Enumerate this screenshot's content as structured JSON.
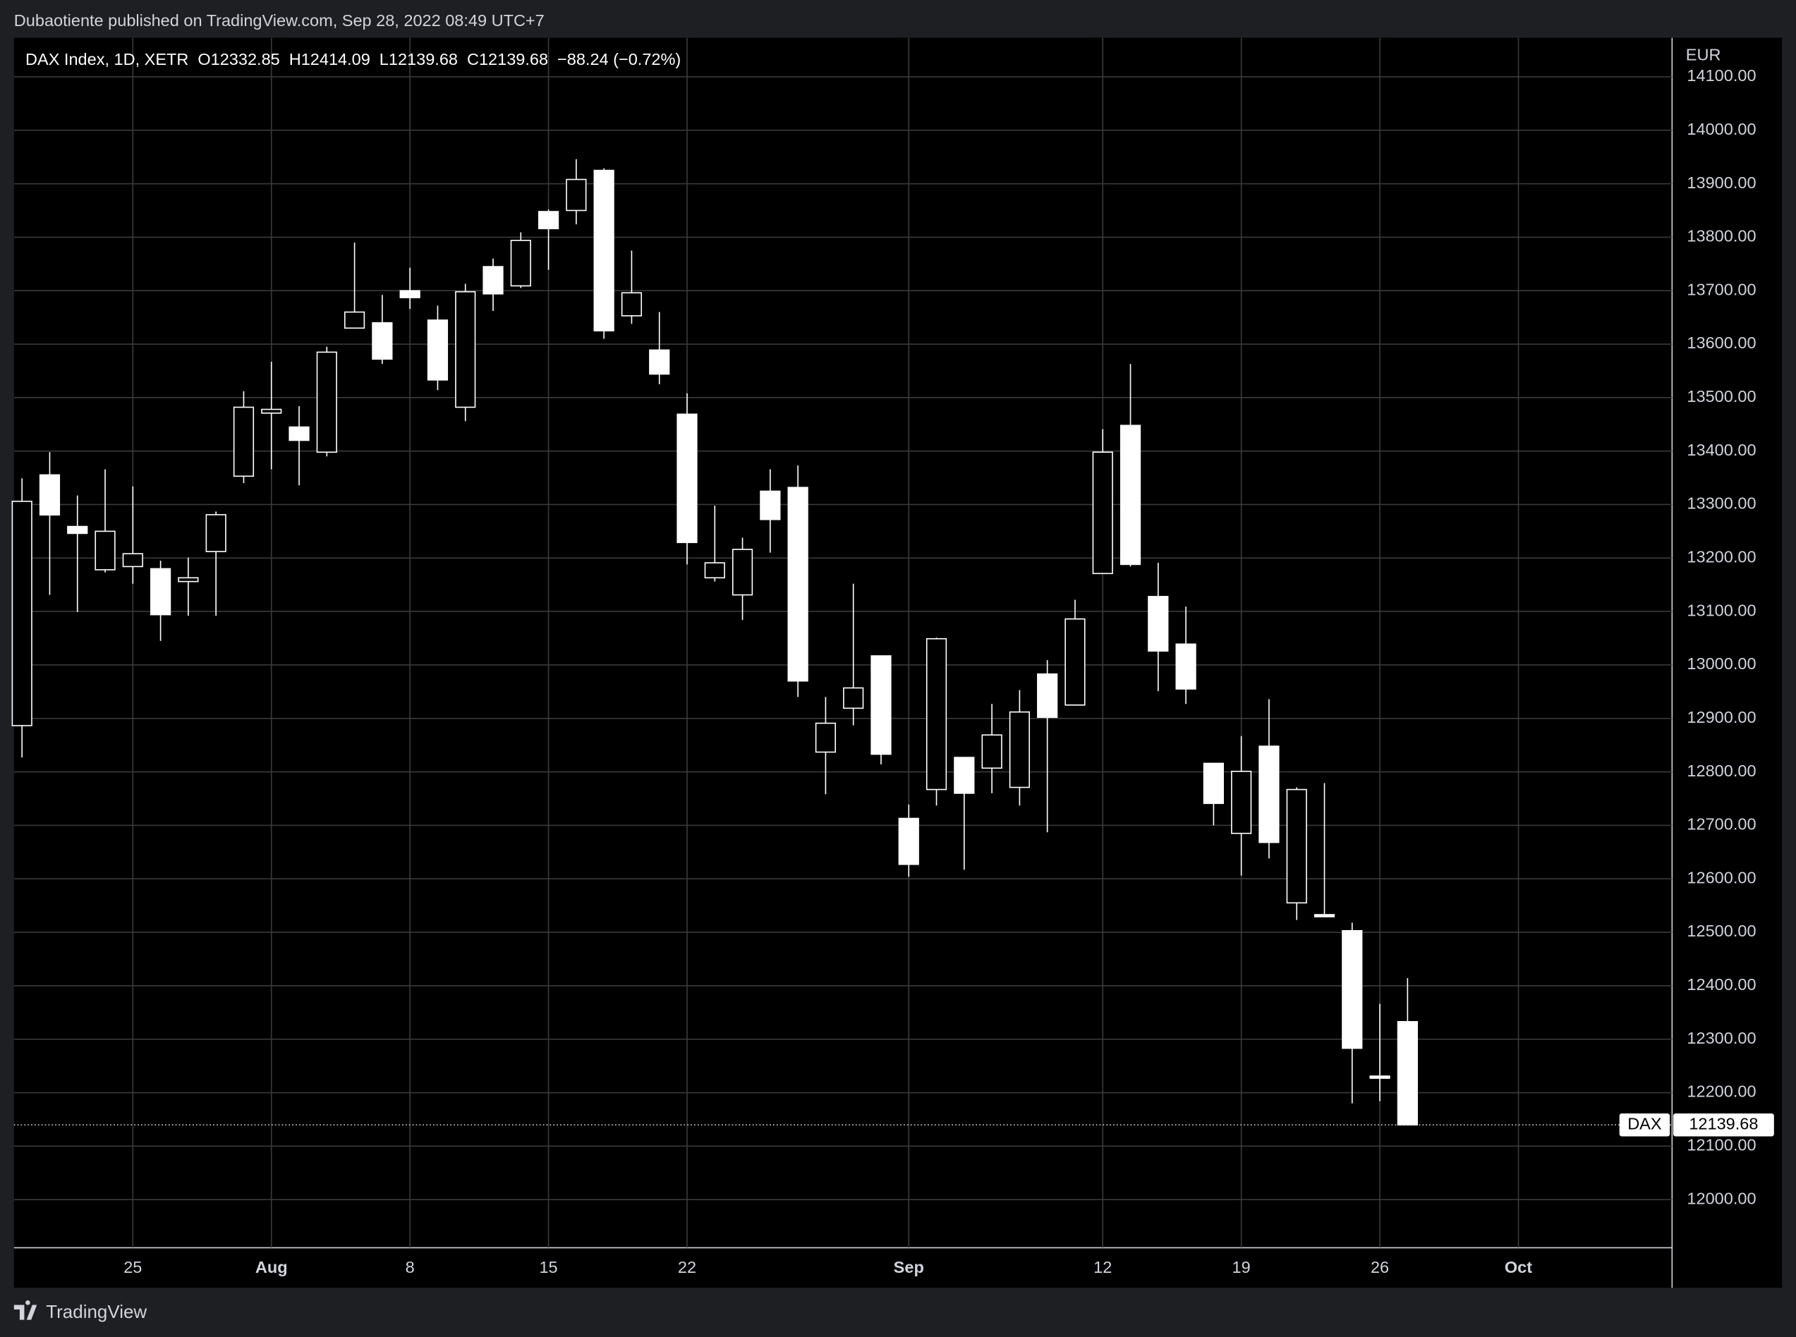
{
  "header": {
    "published": "Dubaotiente published on TradingView.com, Sep 28, 2022 08:49 UTC+7"
  },
  "footer": {
    "brand": "TradingView"
  },
  "chart_data": {
    "type": "candlestick",
    "legend": {
      "symbol": "DAX Index, 1D, XETR",
      "ohlc": [
        {
          "label": "O",
          "value": 12332.85
        },
        {
          "label": "H",
          "value": 12414.09
        },
        {
          "label": "L",
          "value": 12139.68
        },
        {
          "label": "C",
          "value": 12139.68
        }
      ],
      "change": "−88.24 (−0.72%)"
    },
    "currency": "EUR",
    "last_price": {
      "name": "DAX",
      "value": 12139.68
    },
    "categories": [
      null,
      null,
      null,
      null,
      "25",
      null,
      null,
      null,
      null,
      "Aug",
      null,
      null,
      null,
      null,
      "8",
      null,
      null,
      null,
      null,
      "15",
      null,
      null,
      null,
      null,
      "22",
      null,
      null,
      null,
      null,
      null,
      null,
      null,
      "Sep",
      null,
      null,
      null,
      null,
      null,
      null,
      "12",
      null,
      null,
      null,
      null,
      "19",
      null,
      null,
      null,
      null,
      "26",
      null,
      null,
      null,
      null,
      "Oct",
      null,
      null,
      null,
      null,
      null
    ],
    "series": [
      {
        "name": "DAX",
        "color": "#ffffff",
        "open": [
          12886.5,
          13355.5,
          13259,
          13178,
          13184,
          13180,
          13156,
          13212,
          13353,
          13471,
          13445,
          13398,
          13630,
          13640,
          13700,
          13645,
          13482,
          13745,
          13709,
          13848,
          13850,
          13925,
          13653,
          13589,
          13469,
          13163,
          13131,
          13325,
          13332,
          12837,
          12919,
          13017,
          12713,
          12767,
          12827,
          12807,
          12771,
          12983,
          12925,
          13171,
          13448,
          13128,
          13039,
          12816,
          12685,
          12848,
          12555,
          12533,
          12503,
          12231,
          12332.85,
          null,
          null,
          null,
          null,
          null,
          null,
          null,
          null,
          null
        ],
        "high": [
          13349,
          13398,
          13317,
          13366,
          13334,
          13195,
          13201,
          13287,
          13512,
          13567,
          13484,
          13595,
          13790,
          13692,
          13743,
          13672,
          13713,
          13760,
          13809,
          13852,
          13946,
          13929,
          13775,
          13660,
          13508,
          13298,
          13238,
          13366,
          13373,
          12940,
          13152,
          13017,
          12739,
          13051,
          12827,
          12927,
          12953,
          13009,
          13122,
          13441,
          13563,
          13191,
          13109,
          12816,
          12867,
          12936,
          12771,
          12779,
          12518,
          12366,
          12414.09,
          null,
          null,
          null,
          null,
          null,
          null,
          null,
          null,
          null
        ],
        "low": [
          12827,
          13131,
          13099,
          13173,
          13152,
          13045,
          13092,
          13092,
          13340,
          13366,
          13336,
          13390,
          13630,
          13563,
          13666,
          13514,
          13456,
          13662,
          13705,
          13739,
          13824,
          13610,
          13638,
          13525,
          13188,
          13156,
          13084,
          13210,
          12940,
          12758,
          12887,
          12814,
          12604,
          12737,
          12617,
          12760,
          12737,
          12687,
          12925,
          13171,
          13184,
          12951,
          12927,
          12700,
          12606,
          12638,
          12523,
          12529,
          12180,
          12184,
          12139.68,
          null,
          null,
          null,
          null,
          null,
          null,
          null,
          null,
          null
        ],
        "close": [
          13306,
          13280.5,
          13246,
          13250,
          13208,
          13094,
          13163,
          13281,
          13482,
          13478,
          13420,
          13585,
          13660,
          13572,
          13687,
          13533,
          13698,
          13694,
          13794,
          13816,
          13908,
          13625,
          13696,
          13544,
          13229,
          13191,
          13216,
          13272,
          12970,
          12891,
          12957,
          12833,
          12627,
          13049,
          12760,
          12869,
          12912,
          12902,
          13086,
          13398,
          13188,
          13026,
          12955,
          12741,
          12801,
          12668,
          12767,
          12529,
          12283,
          12227,
          12139.68,
          null,
          null,
          null,
          null,
          null,
          null,
          null,
          null,
          null
        ]
      }
    ],
    "ylim": [
      11910,
      14173
    ],
    "yticks": [
      {
        "value": 12000,
        "label": "12000.00"
      },
      {
        "value": 12100,
        "label": "12100.00"
      },
      {
        "value": 12200,
        "label": "12200.00"
      },
      {
        "value": 12300,
        "label": "12300.00"
      },
      {
        "value": 12400,
        "label": "12400.00"
      },
      {
        "value": 12500,
        "label": "12500.00"
      },
      {
        "value": 12600,
        "label": "12600.00"
      },
      {
        "value": 12700,
        "label": "12700.00"
      },
      {
        "value": 12800,
        "label": "12800.00"
      },
      {
        "value": 12900,
        "label": "12900.00"
      },
      {
        "value": 13000,
        "label": "13000.00"
      },
      {
        "value": 13100,
        "label": "13100.00"
      },
      {
        "value": 13200,
        "label": "13200.00"
      },
      {
        "value": 13300,
        "label": "13300.00"
      },
      {
        "value": 13400,
        "label": "13400.00"
      },
      {
        "value": 13500,
        "label": "13500.00"
      },
      {
        "value": 13600,
        "label": "13600.00"
      },
      {
        "value": 13700,
        "label": "13700.00"
      },
      {
        "value": 13800,
        "label": "13800.00"
      },
      {
        "value": 13900,
        "label": "13900.00"
      },
      {
        "value": 14000,
        "label": "14000.00"
      },
      {
        "value": 14100,
        "label": "14100.00"
      }
    ],
    "grid": true
  }
}
